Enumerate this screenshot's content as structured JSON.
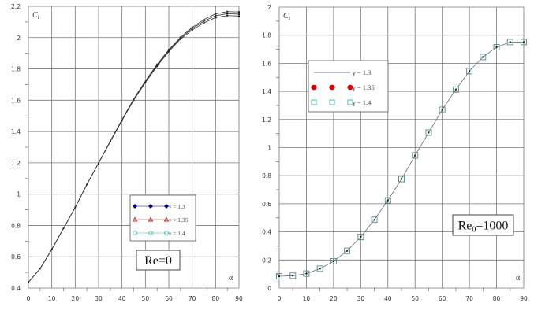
{
  "chart_data": [
    {
      "type": "line",
      "ylabel": "C",
      "ylabel_sub": "l",
      "xlabel": "α",
      "xlim": [
        0,
        90
      ],
      "ylim": [
        0.4,
        2.2
      ],
      "xticks": [
        "0",
        "10",
        "20",
        "30",
        "40",
        "50",
        "60",
        "70",
        "80",
        "90"
      ],
      "yticks": [
        "0.4",
        "0.6",
        "0.8",
        "1",
        "1.2",
        "1.4",
        "1.6",
        "1.8",
        "2",
        "2.2"
      ],
      "grid": true,
      "legend_placement": "center-right",
      "annotation": "Re=0",
      "x": [
        0,
        5,
        10,
        15,
        20,
        25,
        30,
        35,
        40,
        45,
        50,
        55,
        60,
        65,
        70,
        75,
        80,
        85,
        90
      ],
      "series": [
        {
          "name": "γ = 1,3",
          "marker": "filled-diamond",
          "color": "#00008b",
          "values": [
            0.437,
            0.524,
            0.647,
            0.781,
            0.915,
            1.062,
            1.198,
            1.335,
            1.47,
            1.6,
            1.713,
            1.817,
            1.911,
            1.99,
            2.049,
            2.094,
            2.128,
            2.141,
            2.138
          ]
        },
        {
          "name": "γ = 1,35",
          "marker": "open-triangle",
          "color": "#b22222",
          "values": [
            0.437,
            0.524,
            0.647,
            0.781,
            0.915,
            1.062,
            1.199,
            1.337,
            1.473,
            1.604,
            1.718,
            1.823,
            1.917,
            1.996,
            2.058,
            2.105,
            2.14,
            2.153,
            2.15
          ]
        },
        {
          "name": "γ = 1.4",
          "marker": "open-circle",
          "color": "#3cb39a",
          "values": [
            0.437,
            0.524,
            0.647,
            0.781,
            0.915,
            1.062,
            1.2,
            1.339,
            1.476,
            1.608,
            1.723,
            1.829,
            1.923,
            2.002,
            2.066,
            2.115,
            2.152,
            2.166,
            2.164
          ]
        }
      ]
    },
    {
      "type": "line",
      "ylabel": "C",
      "ylabel_sub": "x",
      "xlabel": "α",
      "xlim": [
        0,
        90
      ],
      "ylim": [
        0,
        2
      ],
      "xticks": [
        "0",
        "10",
        "20",
        "30",
        "40",
        "50",
        "60",
        "70",
        "80",
        "90"
      ],
      "yticks": [
        "0",
        "0.2",
        "0.4",
        "0.6",
        "0.8",
        "1",
        "1.2",
        "1.4",
        "1.6",
        "1.8",
        "2"
      ],
      "grid": true,
      "legend_placement": "top-left",
      "annotation": "Re",
      "annotation_sub": "0",
      "annotation_rest": "=1000",
      "x": [
        0,
        5,
        10,
        15,
        20,
        25,
        30,
        35,
        40,
        45,
        50,
        55,
        60,
        65,
        70,
        75,
        80,
        85,
        90
      ],
      "series": [
        {
          "name": "γ = 1.3",
          "marker": "line",
          "color": "#7a7a9a",
          "values": [
            0.084,
            0.088,
            0.103,
            0.138,
            0.19,
            0.265,
            0.364,
            0.486,
            0.624,
            0.776,
            0.944,
            1.107,
            1.269,
            1.413,
            1.544,
            1.645,
            1.714,
            1.751,
            1.751
          ]
        },
        {
          "name": "γ = 1.35",
          "marker": "filled-circle",
          "color": "#dd0000",
          "values": [
            0.084,
            0.088,
            0.103,
            0.138,
            0.19,
            0.265,
            0.364,
            0.486,
            0.624,
            0.776,
            0.944,
            1.107,
            1.269,
            1.413,
            1.544,
            1.645,
            1.714,
            1.751,
            1.751
          ]
        },
        {
          "name": "γ = 1.4",
          "marker": "open-square",
          "color": "#3cb39a",
          "values": [
            0.084,
            0.088,
            0.103,
            0.138,
            0.19,
            0.265,
            0.364,
            0.486,
            0.624,
            0.776,
            0.944,
            1.107,
            1.269,
            1.413,
            1.544,
            1.645,
            1.714,
            1.751,
            1.751
          ]
        }
      ]
    }
  ]
}
